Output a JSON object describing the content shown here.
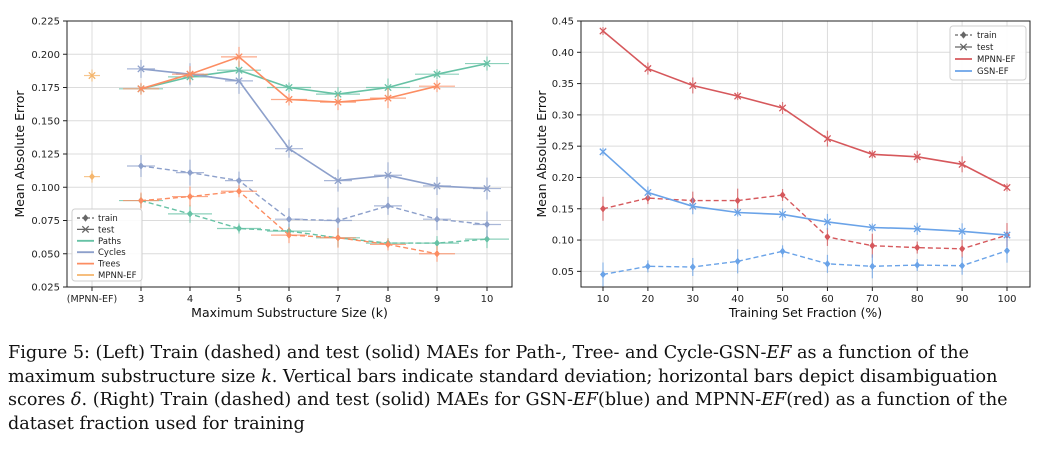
{
  "chart_data": [
    {
      "type": "line",
      "ylabel": "Mean Absolute Error",
      "xlabel": "Maximum Substructure Size (k)",
      "xcategories": [
        "(MPNN-EF)",
        "3",
        "4",
        "5",
        "6",
        "7",
        "8",
        "9",
        "10"
      ],
      "ylim": [
        0.025,
        0.225
      ],
      "yticks": [
        "0.025",
        "0.050",
        "0.075",
        "0.100",
        "0.125",
        "0.150",
        "0.175",
        "0.200",
        "0.225"
      ],
      "grid": true,
      "legend_position": "bottom-left",
      "legend": [
        {
          "label": "train",
          "style": "train"
        },
        {
          "label": "test",
          "style": "test"
        },
        {
          "label": "Paths",
          "color": "#66c2a5"
        },
        {
          "label": "Cycles",
          "color": "#8da0cb"
        },
        {
          "label": "Trees",
          "color": "#fc8d62"
        },
        {
          "label": "MPNN-EF",
          "color": "#f5b56b"
        }
      ],
      "mpnn_point": {
        "color": "#f5b56b",
        "test": 0.184,
        "train": 0.108
      },
      "series": [
        {
          "name": "Paths",
          "color": "#66c2a5",
          "x": [
            3,
            4,
            5,
            6,
            7,
            8,
            9,
            10
          ],
          "test": [
            0.174,
            0.183,
            0.188,
            0.175,
            0.17,
            0.175,
            0.185,
            0.193
          ],
          "train": [
            0.09,
            0.08,
            0.069,
            0.067,
            0.062,
            0.058,
            0.058,
            0.061
          ]
        },
        {
          "name": "Cycles",
          "color": "#8da0cb",
          "x": [
            3,
            4,
            5,
            6,
            7,
            8,
            9,
            10
          ],
          "test": [
            0.189,
            0.185,
            0.18,
            0.129,
            0.105,
            0.109,
            0.101,
            0.099
          ],
          "train": [
            0.116,
            0.111,
            0.105,
            0.076,
            0.075,
            0.086,
            0.076,
            0.072
          ]
        },
        {
          "name": "Trees",
          "color": "#fc8d62",
          "x": [
            3,
            4,
            5,
            6,
            7,
            8,
            9
          ],
          "test": [
            0.174,
            0.185,
            0.198,
            0.166,
            0.164,
            0.167,
            0.176
          ],
          "train": [
            0.09,
            0.093,
            0.097,
            0.064,
            0.062,
            0.057,
            0.05
          ]
        }
      ]
    },
    {
      "type": "line",
      "ylabel": "Mean Absolute Error",
      "xlabel": "Training Set Fraction (%)",
      "x": [
        10,
        20,
        30,
        40,
        50,
        60,
        70,
        80,
        90,
        100
      ],
      "xticks": [
        "10",
        "20",
        "30",
        "40",
        "50",
        "60",
        "70",
        "80",
        "90",
        "100"
      ],
      "ylim": [
        0.025,
        0.45
      ],
      "yticks": [
        "0.05",
        "0.10",
        "0.15",
        "0.20",
        "0.25",
        "0.30",
        "0.35",
        "0.40",
        "0.45"
      ],
      "grid": true,
      "legend_position": "top-right",
      "legend": [
        {
          "label": "train",
          "style": "train"
        },
        {
          "label": "test",
          "style": "test"
        },
        {
          "label": "MPNN-EF",
          "color": "#d6585c"
        },
        {
          "label": "GSN-EF",
          "color": "#6aa3e8"
        }
      ],
      "series": [
        {
          "name": "MPNN-EF",
          "color": "#d6585c",
          "test": [
            0.434,
            0.374,
            0.347,
            0.33,
            0.311,
            0.262,
            0.237,
            0.233,
            0.221,
            0.184
          ],
          "train": [
            0.15,
            0.167,
            0.163,
            0.163,
            0.172,
            0.105,
            0.091,
            0.088,
            0.086,
            0.108
          ]
        },
        {
          "name": "GSN-EF",
          "color": "#6aa3e8",
          "test": [
            0.241,
            0.176,
            0.154,
            0.144,
            0.141,
            0.129,
            0.12,
            0.118,
            0.114,
            0.108
          ],
          "train": [
            0.045,
            0.058,
            0.057,
            0.066,
            0.082,
            0.062,
            0.058,
            0.06,
            0.059,
            0.083
          ]
        }
      ]
    }
  ],
  "caption": {
    "figure_label": "Figure 5:",
    "text_before_ef1": " (Left) Train (dashed) and test (solid) MAEs for Path-, Tree- and Cycle-GSN-",
    "ef1": "EF",
    "text_after_ef1": " as a function of the maximum substructure size ",
    "k": "k",
    "text_mid": ". Vertical bars indicate standard deviation; horizontal bars depict disambiguation scores ",
    "delta": "δ",
    "text_right": ". (Right) Train (dashed) and test (solid) MAEs for GSN-",
    "ef2": "EF",
    "text_blue": "(blue) and MPNN-",
    "ef3": "EF",
    "text_end": "(red) as a function of the dataset fraction used for training"
  }
}
